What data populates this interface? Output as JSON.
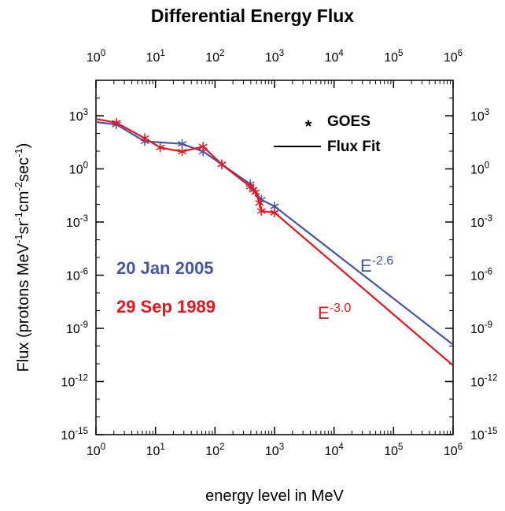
{
  "chart_data": {
    "type": "line",
    "title": "Differential Energy Flux",
    "xlabel": "energy level in MeV",
    "ylabel": [
      {
        "text": "Flux (protons MeV"
      },
      {
        "sup": "-1"
      },
      {
        "text": "sr"
      },
      {
        "sup": "-1"
      },
      {
        "text": "cm"
      },
      {
        "sup": "-2"
      },
      {
        "text": "sec"
      },
      {
        "sup": "-1"
      },
      {
        "text": ")"
      }
    ],
    "xscale": "log",
    "yscale": "log",
    "xlim": [
      1,
      1000000
    ],
    "ylim": [
      1e-15,
      100000
    ],
    "xticks": [
      {
        "value": 1,
        "label": "10",
        "exponent": "0"
      },
      {
        "value": 10,
        "label": "10",
        "exponent": "1"
      },
      {
        "value": 100,
        "label": "10",
        "exponent": "2"
      },
      {
        "value": 1000,
        "label": "10",
        "exponent": "3"
      },
      {
        "value": 10000,
        "label": "10",
        "exponent": "4"
      },
      {
        "value": 100000,
        "label": "10",
        "exponent": "5"
      },
      {
        "value": 1000000,
        "label": "10",
        "exponent": "6"
      }
    ],
    "yticks": [
      {
        "value": 1e-15,
        "label": "10",
        "exponent": "-15"
      },
      {
        "value": 1e-12,
        "label": "10",
        "exponent": "-12"
      },
      {
        "value": 1e-09,
        "label": "10",
        "exponent": "-9"
      },
      {
        "value": 1e-06,
        "label": "10",
        "exponent": "-6"
      },
      {
        "value": 0.001,
        "label": "10",
        "exponent": "-3"
      },
      {
        "value": 1,
        "label": "10",
        "exponent": "0"
      },
      {
        "value": 1000,
        "label": "10",
        "exponent": "3"
      }
    ],
    "legend": [
      {
        "symbol": "*",
        "label": "GOES"
      },
      {
        "label": "Flux Fit"
      }
    ],
    "series": [
      {
        "name": "20 Jan 2005",
        "color": "#4655a5",
        "x": [
          1,
          2.2,
          6.6,
          28,
          63,
          130,
          390,
          440,
          600,
          1000,
          1000000
        ],
        "values": [
          440,
          320,
          36,
          26,
          9.5,
          1.8,
          0.14,
          0.066,
          0.018,
          0.0077,
          1.2e-10
        ],
        "annotation": {
          "text": "E",
          "exponent": "-2.6"
        }
      },
      {
        "name": "29 Sep 1989",
        "color": "#e8141c",
        "x": [
          1,
          2.2,
          6.6,
          12,
          28,
          63,
          130,
          390,
          480,
          560,
          600,
          1000,
          1000000
        ],
        "values": [
          660,
          400,
          54,
          16,
          9.5,
          18,
          1.8,
          0.1,
          0.049,
          0.012,
          0.0042,
          0.0034,
          8e-12
        ],
        "annotation": {
          "text": "E",
          "exponent": "-3.0"
        }
      }
    ]
  }
}
